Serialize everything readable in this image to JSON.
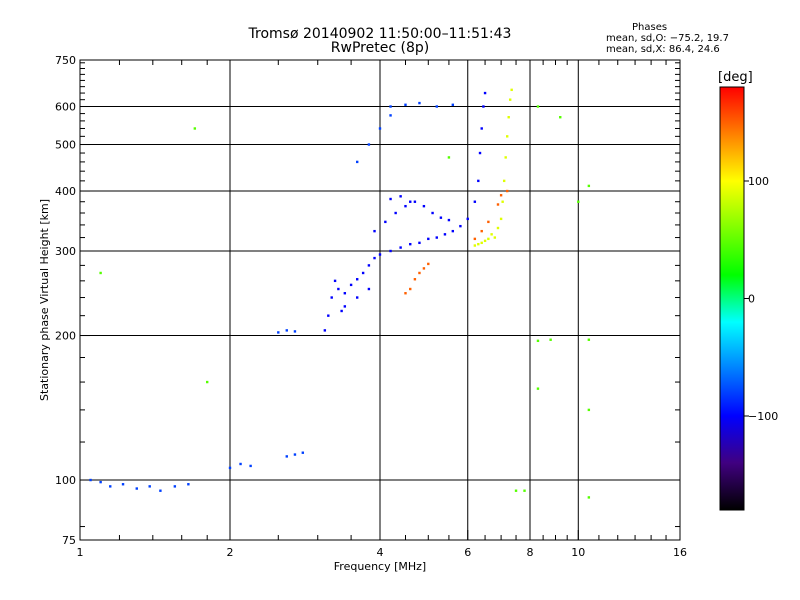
{
  "chart_data": {
    "type": "scatter",
    "title": "Tromsø 20140902 11:50:00–11:51:43",
    "subtitle": "RwPretec (8p)",
    "xlabel": "Frequency [MHz]",
    "ylabel": "Stationary phase Virtual Height [km]",
    "x_scale": "log",
    "y_scale": "log",
    "xlim": [
      1,
      16
    ],
    "ylim": [
      75,
      750
    ],
    "x_ticks": [
      1,
      2,
      4,
      6,
      8,
      10,
      16
    ],
    "x_tick_labels": [
      "1",
      "2",
      "4",
      "6",
      "8",
      "10",
      "16"
    ],
    "y_ticks": [
      75,
      100,
      200,
      300,
      400,
      500,
      600,
      750
    ],
    "y_tick_labels": [
      "75",
      "100",
      "200",
      "300",
      "400",
      "500",
      "600",
      "750"
    ],
    "grid": true,
    "phase_stats": {
      "heading": "Phases",
      "o_line": "mean, sd,O: −75.2, 19.7",
      "x_line": "mean, sd,X: 86.4, 24.6"
    },
    "colorbar": {
      "label": "[deg]",
      "range": [
        -180,
        180
      ],
      "ticks": [
        100,
        0,
        -100
      ],
      "tick_labels": [
        "100",
        "0",
        "−100"
      ],
      "colors": [
        "#ff0000",
        "#ff8000",
        "#ffff00",
        "#80ff00",
        "#00ff00",
        "#00ffff",
        "#0080ff",
        "#0000ff",
        "#400080",
        "#000000"
      ]
    },
    "series": [
      {
        "values": [
          [
            1.05,
            100
          ],
          [
            1.1,
            99
          ],
          [
            1.15,
            97
          ],
          [
            1.22,
            98
          ],
          [
            1.3,
            96
          ],
          [
            1.38,
            97
          ],
          [
            1.45,
            95
          ],
          [
            1.55,
            97
          ],
          [
            1.65,
            98
          ],
          [
            2.0,
            106
          ],
          [
            2.1,
            108
          ],
          [
            2.2,
            107
          ],
          [
            2.6,
            112
          ],
          [
            2.7,
            113
          ],
          [
            2.8,
            114
          ],
          [
            2.5,
            203
          ],
          [
            2.6,
            205
          ],
          [
            2.7,
            204
          ],
          [
            4.2,
            600
          ],
          [
            4.5,
            605
          ],
          [
            4.8,
            610
          ],
          [
            5.2,
            600
          ],
          [
            5.6,
            605
          ],
          [
            3.6,
            460
          ],
          [
            3.8,
            500
          ],
          [
            4.0,
            540
          ],
          [
            4.2,
            575
          ]
        ],
        "phase": -95
      },
      {
        "values": [
          [
            3.1,
            205
          ],
          [
            3.15,
            220
          ],
          [
            3.2,
            240
          ],
          [
            3.25,
            260
          ],
          [
            3.3,
            250
          ],
          [
            3.4,
            245
          ],
          [
            3.5,
            255
          ],
          [
            3.6,
            262
          ],
          [
            3.7,
            270
          ],
          [
            3.8,
            280
          ],
          [
            3.9,
            290
          ],
          [
            4.0,
            295
          ],
          [
            4.2,
            300
          ],
          [
            4.4,
            305
          ],
          [
            4.6,
            310
          ],
          [
            4.8,
            312
          ],
          [
            5.0,
            318
          ],
          [
            5.2,
            320
          ],
          [
            5.4,
            325
          ],
          [
            5.6,
            330
          ],
          [
            5.8,
            338
          ],
          [
            6.0,
            350
          ],
          [
            6.2,
            380
          ],
          [
            6.3,
            420
          ],
          [
            6.35,
            480
          ],
          [
            6.4,
            540
          ],
          [
            6.45,
            600
          ],
          [
            6.5,
            640
          ],
          [
            3.9,
            330
          ],
          [
            4.1,
            345
          ],
          [
            4.3,
            360
          ],
          [
            4.5,
            372
          ],
          [
            4.7,
            380
          ],
          [
            4.9,
            372
          ],
          [
            5.1,
            360
          ],
          [
            5.3,
            352
          ],
          [
            5.5,
            348
          ],
          [
            4.2,
            385
          ],
          [
            4.4,
            390
          ],
          [
            4.6,
            380
          ],
          [
            3.4,
            230
          ],
          [
            3.6,
            240
          ],
          [
            3.8,
            250
          ],
          [
            3.35,
            225
          ]
        ],
        "phase": -110
      },
      {
        "values": [
          [
            6.8,
            320
          ],
          [
            6.9,
            335
          ],
          [
            7.0,
            350
          ],
          [
            7.05,
            380
          ],
          [
            7.1,
            420
          ],
          [
            7.15,
            470
          ],
          [
            7.2,
            520
          ],
          [
            7.25,
            570
          ],
          [
            7.3,
            620
          ],
          [
            7.35,
            650
          ],
          [
            6.6,
            318
          ],
          [
            6.7,
            325
          ],
          [
            6.5,
            315
          ],
          [
            6.4,
            312
          ],
          [
            6.3,
            310
          ],
          [
            6.2,
            308
          ]
        ],
        "phase": 90
      },
      {
        "values": [
          [
            4.6,
            250
          ],
          [
            4.7,
            262
          ],
          [
            4.8,
            270
          ],
          [
            4.9,
            276
          ],
          [
            5.0,
            282
          ],
          [
            4.5,
            245
          ],
          [
            6.2,
            318
          ],
          [
            6.4,
            330
          ],
          [
            6.6,
            345
          ],
          [
            6.9,
            375
          ],
          [
            7.0,
            392
          ],
          [
            7.2,
            400
          ]
        ],
        "phase": 150
      },
      {
        "values": [
          [
            1.7,
            540
          ],
          [
            1.8,
            160
          ],
          [
            1.1,
            270
          ],
          [
            5.5,
            470
          ],
          [
            7.5,
            95
          ],
          [
            7.8,
            95
          ],
          [
            8.3,
            600
          ],
          [
            9.2,
            570
          ],
          [
            10.5,
            92
          ],
          [
            8.3,
            195
          ],
          [
            8.8,
            196
          ],
          [
            10.5,
            196
          ],
          [
            8.3,
            155
          ],
          [
            10.5,
            140
          ],
          [
            10.0,
            380
          ],
          [
            10.5,
            410
          ]
        ],
        "phase": 40
      }
    ]
  }
}
